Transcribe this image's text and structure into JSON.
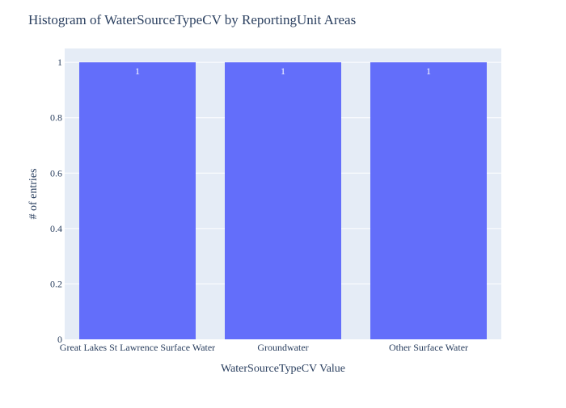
{
  "chart_data": {
    "type": "bar",
    "title": "Histogram of WaterSourceTypeCV by ReportingUnit Areas",
    "xlabel": "WaterSourceTypeCV Value",
    "ylabel": "# of entries",
    "categories": [
      "Great Lakes St Lawrence Surface Water",
      "Groundwater",
      "Other Surface Water"
    ],
    "values": [
      1,
      1,
      1
    ],
    "data_labels": [
      "1",
      "1",
      "1"
    ],
    "ylim": [
      0,
      1.05
    ],
    "y_ticks": [
      0,
      0.2,
      0.4,
      0.6,
      0.8,
      1
    ],
    "y_tick_labels": [
      "0",
      "0.2",
      "0.4",
      "0.6",
      "0.8",
      "1"
    ],
    "grid": true,
    "colors": {
      "bar": "#636efa",
      "plot_background": "#e5ecf6",
      "grid": "#ffffff",
      "text": "#2a3f5f"
    }
  }
}
